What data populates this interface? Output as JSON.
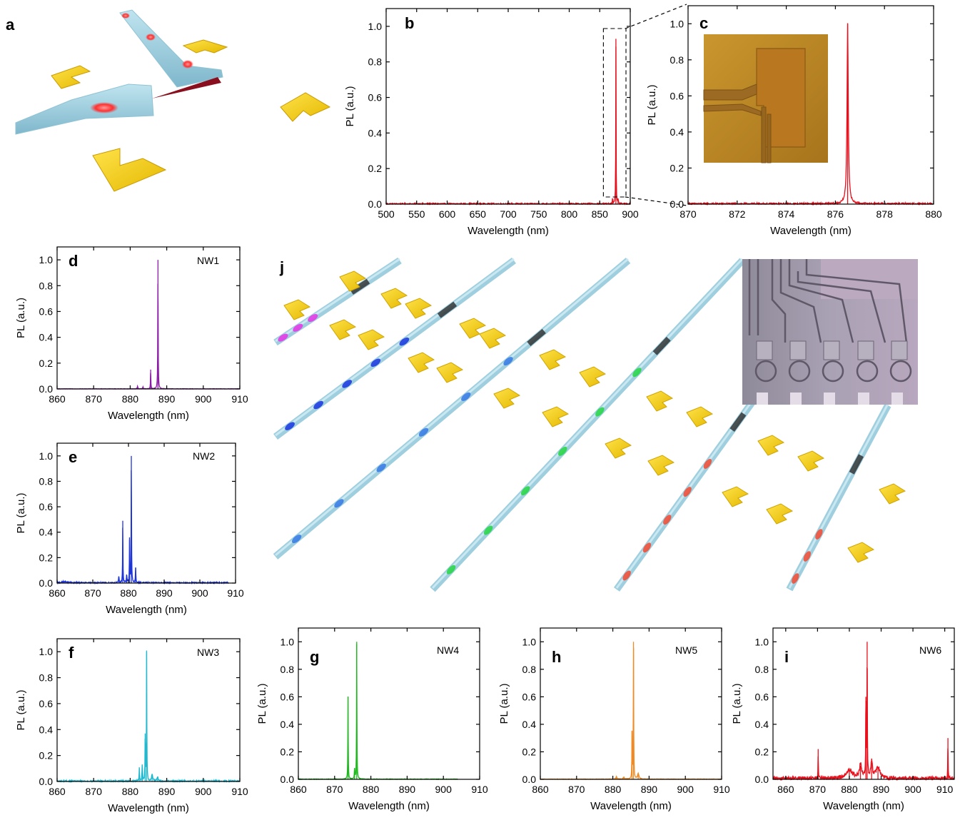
{
  "panels": {
    "a": {
      "label": "a"
    },
    "j": {
      "label": "j"
    }
  },
  "chart_data": [
    {
      "id": "b",
      "label": "b",
      "type": "line",
      "xlabel": "Wavelength (nm)",
      "ylabel": "PL (a.u.)",
      "xlim": [
        500,
        900
      ],
      "ylim": [
        0,
        1.1
      ],
      "xticks": [
        500,
        550,
        600,
        650,
        700,
        750,
        800,
        850,
        900
      ],
      "yticks": [
        0.0,
        0.2,
        0.4,
        0.6,
        0.8,
        1.0
      ],
      "tag": "",
      "color": "#e8101c",
      "noise": 0.008,
      "noise_from": 500,
      "noise_to": 900,
      "peaks": [
        [
          876.5,
          0.93,
          0.6
        ],
        [
          871,
          0.03,
          1.2
        ],
        [
          880,
          0.02,
          1.2
        ]
      ]
    },
    {
      "id": "c",
      "label": "c",
      "type": "line",
      "xlabel": "Wavelength (nm)",
      "ylabel": "PL (a.u.)",
      "xlim": [
        870,
        880
      ],
      "ylim": [
        0,
        1.1
      ],
      "xticks": [
        870,
        872,
        874,
        876,
        878,
        880
      ],
      "yticks": [
        0.0,
        0.2,
        0.4,
        0.6,
        0.8,
        1.0
      ],
      "tag": "",
      "color": "#e8101c",
      "noise": 0.01,
      "noise_from": 870,
      "noise_to": 880,
      "peaks": [
        [
          876.5,
          1.0,
          0.06
        ]
      ]
    },
    {
      "id": "d",
      "label": "d",
      "type": "line",
      "xlabel": "Wavelength (nm)",
      "ylabel": "PL (a.u.)",
      "xlim": [
        860,
        910
      ],
      "ylim": [
        0,
        1.1
      ],
      "xticks": [
        860,
        870,
        880,
        890,
        900,
        910
      ],
      "yticks": [
        0.0,
        0.2,
        0.4,
        0.6,
        0.8,
        1.0
      ],
      "tag": "NW1",
      "color": "#8c1ba8",
      "noise": 0.003,
      "noise_from": 860,
      "noise_to": 910,
      "peaks": [
        [
          887.6,
          1.0,
          0.12
        ],
        [
          885.6,
          0.15,
          0.12
        ],
        [
          882,
          0.02,
          0.2
        ],
        [
          883.5,
          0.015,
          0.2
        ]
      ]
    },
    {
      "id": "e",
      "label": "e",
      "type": "line",
      "xlabel": "Wavelength (nm)",
      "ylabel": "PL (a.u.)",
      "xlim": [
        860,
        910
      ],
      "ylim": [
        0,
        1.1
      ],
      "xticks": [
        860,
        870,
        880,
        890,
        900,
        910
      ],
      "yticks": [
        0.0,
        0.2,
        0.4,
        0.6,
        0.8,
        1.0
      ],
      "tag": "NW2",
      "color": "#1d34d8",
      "noise": 0.01,
      "noise_from": 860,
      "noise_to": 908,
      "peaks": [
        [
          880.8,
          1.0,
          0.12
        ],
        [
          878.4,
          0.49,
          0.12
        ],
        [
          880.3,
          0.34,
          0.12
        ],
        [
          882,
          0.12,
          0.15
        ],
        [
          877.3,
          0.05,
          0.2
        ],
        [
          879.5,
          0.06,
          0.2
        ],
        [
          862,
          0.01,
          1.5
        ]
      ]
    },
    {
      "id": "f",
      "label": "f",
      "type": "line",
      "xlabel": "Wavelength (nm)",
      "ylabel": "PL (a.u.)",
      "xlim": [
        860,
        910
      ],
      "ylim": [
        0,
        1.1
      ],
      "xticks": [
        860,
        870,
        880,
        890,
        900,
        910
      ],
      "yticks": [
        0.0,
        0.2,
        0.4,
        0.6,
        0.8,
        1.0
      ],
      "tag": "NW3",
      "color": "#20b9d0",
      "noise": 0.012,
      "noise_from": 860,
      "noise_to": 910,
      "peaks": [
        [
          884.5,
          1.0,
          0.12
        ],
        [
          884.1,
          0.37,
          0.12
        ],
        [
          882.5,
          0.1,
          0.15
        ],
        [
          883.3,
          0.12,
          0.2
        ],
        [
          886,
          0.05,
          0.4
        ],
        [
          887.5,
          0.03,
          0.5
        ]
      ]
    },
    {
      "id": "g",
      "label": "g",
      "type": "line",
      "xlabel": "Wavelength (nm)",
      "ylabel": "PL (a.u.)",
      "xlim": [
        860,
        910
      ],
      "ylim": [
        0,
        1.1
      ],
      "xticks": [
        860,
        870,
        880,
        890,
        900,
        910
      ],
      "yticks": [
        0.0,
        0.2,
        0.4,
        0.6,
        0.8,
        1.0
      ],
      "tag": "NW4",
      "color": "#1fb81f",
      "noise": 0.004,
      "noise_from": 860,
      "noise_to": 904,
      "peaks": [
        [
          876.1,
          1.0,
          0.12
        ],
        [
          873.7,
          0.6,
          0.12
        ],
        [
          875.5,
          0.08,
          0.15
        ]
      ]
    },
    {
      "id": "h",
      "label": "h",
      "type": "line",
      "xlabel": "Wavelength (nm)",
      "ylabel": "PL (a.u.)",
      "xlim": [
        860,
        910
      ],
      "ylim": [
        0,
        1.1
      ],
      "xticks": [
        860,
        870,
        880,
        890,
        900,
        910
      ],
      "yticks": [
        0.0,
        0.2,
        0.4,
        0.6,
        0.8,
        1.0
      ],
      "tag": "NW5",
      "color": "#f08a24",
      "noise": 0.004,
      "noise_from": 860,
      "noise_to": 910,
      "peaks": [
        [
          885.7,
          1.0,
          0.12
        ],
        [
          885.3,
          0.35,
          0.12
        ],
        [
          881,
          0.02,
          0.3
        ],
        [
          887,
          0.04,
          0.5
        ],
        [
          883,
          0.015,
          0.4
        ]
      ]
    },
    {
      "id": "i",
      "label": "i",
      "type": "line",
      "xlabel": "Wavelength (nm)",
      "ylabel": "PL (a.u.)",
      "xlim": [
        856,
        913
      ],
      "ylim": [
        0,
        1.1
      ],
      "xticks": [
        860,
        870,
        880,
        890,
        900,
        910
      ],
      "yticks": [
        0.0,
        0.2,
        0.4,
        0.6,
        0.8,
        1.0
      ],
      "tag": "NW6",
      "color": "#e8101c",
      "noise": 0.03,
      "noise_from": 856,
      "noise_to": 913,
      "peaks": [
        [
          885.6,
          1.0,
          0.15
        ],
        [
          885.2,
          0.6,
          0.15
        ],
        [
          870.2,
          0.22,
          0.12
        ],
        [
          911,
          0.3,
          0.12
        ],
        [
          880,
          0.06,
          2.5
        ],
        [
          889,
          0.08,
          1.5
        ],
        [
          887,
          0.12,
          0.6
        ],
        [
          883.5,
          0.1,
          0.8
        ]
      ]
    }
  ]
}
